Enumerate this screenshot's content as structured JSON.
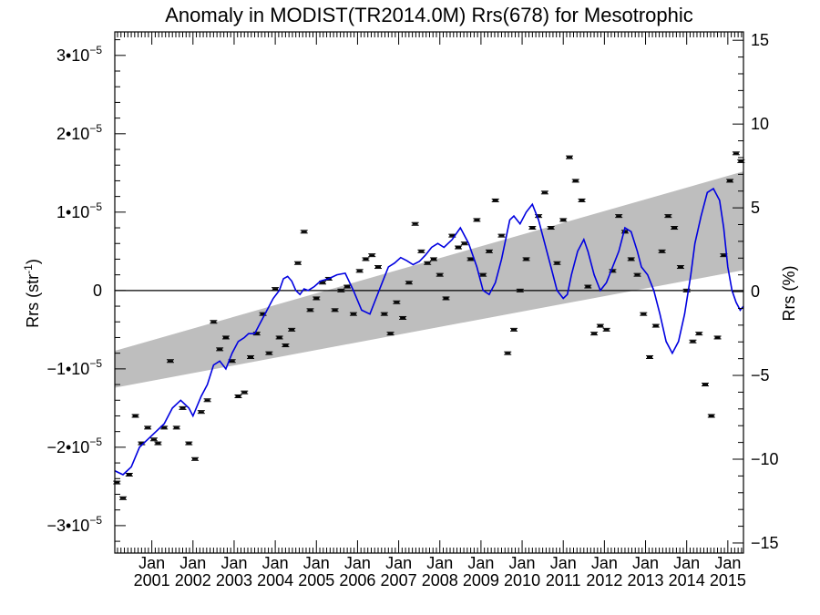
{
  "chart_data": {
    "type": "line",
    "title": "Anomaly in MODIST(TR2014.0M) Rrs(678) for Mesotrophic",
    "ylabel_left": "Rrs (str",
    "ylabel_left_sup": "-1",
    "ylabel_left_close": ")",
    "ylabel_right": "Rrs (%)",
    "xlim": [
      2000.1,
      2015.38
    ],
    "ylim": [
      -3.35e-05,
      3.3e-05
    ],
    "ylim_right": [
      -15.6,
      15.5
    ],
    "left_ticks": [
      {
        "value": 3e-05,
        "mant": "3•10",
        "exp": "−5"
      },
      {
        "value": 2e-05,
        "mant": "2•10",
        "exp": "−5"
      },
      {
        "value": 1e-05,
        "mant": "1•10",
        "exp": "−5"
      },
      {
        "value": 0,
        "mant": "0",
        "exp": ""
      },
      {
        "value": -1e-05,
        "mant": "−1•10",
        "exp": "−5"
      },
      {
        "value": -2e-05,
        "mant": "−2•10",
        "exp": "−5"
      },
      {
        "value": -3e-05,
        "mant": "−3•10",
        "exp": "−5"
      }
    ],
    "right_ticks": [
      {
        "value": 15,
        "label": "15"
      },
      {
        "value": 10,
        "label": "10"
      },
      {
        "value": 5,
        "label": "5"
      },
      {
        "value": 0,
        "label": "0"
      },
      {
        "value": -5,
        "label": "−5"
      },
      {
        "value": -10,
        "label": "−10"
      },
      {
        "value": -15,
        "label": "−15"
      }
    ],
    "x_ticks": [
      {
        "value": 2001,
        "month": "Jan",
        "year": "2001"
      },
      {
        "value": 2002,
        "month": "Jan",
        "year": "2002"
      },
      {
        "value": 2003,
        "month": "Jan",
        "year": "2003"
      },
      {
        "value": 2004,
        "month": "Jan",
        "year": "2004"
      },
      {
        "value": 2005,
        "month": "Jan",
        "year": "2005"
      },
      {
        "value": 2006,
        "month": "Jan",
        "year": "2006"
      },
      {
        "value": 2007,
        "month": "Jan",
        "year": "2007"
      },
      {
        "value": 2008,
        "month": "Jan",
        "year": "2008"
      },
      {
        "value": 2009,
        "month": "Jan",
        "year": "2009"
      },
      {
        "value": 2010,
        "month": "Jan",
        "year": "2010"
      },
      {
        "value": 2011,
        "month": "Jan",
        "year": "2011"
      },
      {
        "value": 2012,
        "month": "Jan",
        "year": "2012"
      },
      {
        "value": 2013,
        "month": "Jan",
        "year": "2013"
      },
      {
        "value": 2014,
        "month": "Jan",
        "year": "2014"
      },
      {
        "value": 2015,
        "month": "Jan",
        "year": "2015"
      }
    ],
    "band": {
      "color": "#bebebe",
      "x": [
        2000.1,
        2015.38
      ],
      "upper": [
        -7.7e-06,
        1.52e-05
      ],
      "lower": [
        -1.24e-05,
        2.6e-06
      ]
    },
    "zero_line": 0,
    "line": {
      "color": "#0000e0",
      "x": [
        2000.1,
        2000.3,
        2000.5,
        2000.7,
        2000.9,
        2001.1,
        2001.3,
        2001.5,
        2001.7,
        2001.9,
        2002.0,
        2002.2,
        2002.35,
        2002.5,
        2002.65,
        2002.8,
        2002.95,
        2003.1,
        2003.25,
        2003.35,
        2003.5,
        2003.65,
        2003.8,
        2003.95,
        2004.1,
        2004.2,
        2004.3,
        2004.4,
        2004.5,
        2004.6,
        2004.7,
        2004.8,
        2004.95,
        2005.1,
        2005.3,
        2005.5,
        2005.7,
        2005.9,
        2006.1,
        2006.3,
        2006.45,
        2006.6,
        2006.75,
        2006.9,
        2007.05,
        2007.2,
        2007.35,
        2007.5,
        2007.65,
        2007.8,
        2007.95,
        2008.1,
        2008.3,
        2008.5,
        2008.7,
        2008.9,
        2009.05,
        2009.2,
        2009.35,
        2009.5,
        2009.6,
        2009.7,
        2009.8,
        2009.95,
        2010.1,
        2010.25,
        2010.4,
        2010.55,
        2010.7,
        2010.85,
        2011.0,
        2011.1,
        2011.2,
        2011.35,
        2011.5,
        2011.6,
        2011.75,
        2011.9,
        2012.05,
        2012.2,
        2012.35,
        2012.5,
        2012.65,
        2012.8,
        2012.9,
        2013.05,
        2013.2,
        2013.35,
        2013.5,
        2013.65,
        2013.8,
        2013.95,
        2014.1,
        2014.2,
        2014.35,
        2014.5,
        2014.65,
        2014.8,
        2014.9,
        2015.0,
        2015.1,
        2015.2,
        2015.3,
        2015.38
      ],
      "y": [
        -2.3,
        -2.35,
        -2.25,
        -2.0,
        -1.9,
        -1.8,
        -1.7,
        -1.5,
        -1.4,
        -1.5,
        -1.6,
        -1.35,
        -1.2,
        -0.95,
        -0.9,
        -1.0,
        -0.8,
        -0.65,
        -0.6,
        -0.55,
        -0.55,
        -0.4,
        -0.25,
        -0.1,
        0.0,
        0.15,
        0.18,
        0.12,
        0.0,
        -0.05,
        0.02,
        0.0,
        0.05,
        0.12,
        0.15,
        0.2,
        0.22,
        0.0,
        -0.25,
        -0.3,
        -0.1,
        0.1,
        0.3,
        0.35,
        0.42,
        0.38,
        0.33,
        0.37,
        0.45,
        0.55,
        0.6,
        0.55,
        0.65,
        0.8,
        0.6,
        0.3,
        0.0,
        -0.05,
        0.1,
        0.4,
        0.65,
        0.9,
        0.95,
        0.85,
        1.0,
        1.1,
        0.9,
        0.6,
        0.3,
        0.0,
        -0.1,
        -0.05,
        0.2,
        0.5,
        0.65,
        0.5,
        0.2,
        0.0,
        0.1,
        0.3,
        0.5,
        0.8,
        0.75,
        0.5,
        0.3,
        0.2,
        0.0,
        -0.3,
        -0.65,
        -0.8,
        -0.65,
        -0.3,
        0.2,
        0.6,
        0.95,
        1.25,
        1.3,
        1.15,
        0.8,
        0.3,
        0.0,
        -0.15,
        -0.25,
        -0.2
      ],
      "y_scale": 1e-05
    },
    "points": {
      "y_scale": 1e-05,
      "x": [
        2000.15,
        2000.3,
        2000.45,
        2000.6,
        2000.75,
        2000.9,
        2001.05,
        2001.15,
        2001.3,
        2001.45,
        2001.6,
        2001.75,
        2001.9,
        2002.05,
        2002.2,
        2002.35,
        2002.5,
        2002.65,
        2002.8,
        2002.95,
        2003.1,
        2003.25,
        2003.4,
        2003.55,
        2003.7,
        2003.85,
        2004.0,
        2004.1,
        2004.25,
        2004.4,
        2004.55,
        2004.7,
        2004.85,
        2005.0,
        2005.15,
        2005.3,
        2005.45,
        2005.6,
        2005.75,
        2005.9,
        2006.05,
        2006.2,
        2006.35,
        2006.5,
        2006.65,
        2006.8,
        2006.95,
        2007.1,
        2007.25,
        2007.4,
        2007.55,
        2007.7,
        2007.85,
        2008.0,
        2008.15,
        2008.3,
        2008.45,
        2008.6,
        2008.75,
        2008.9,
        2009.05,
        2009.2,
        2009.35,
        2009.5,
        2009.65,
        2009.8,
        2009.95,
        2010.1,
        2010.25,
        2010.4,
        2010.55,
        2010.7,
        2010.85,
        2011.0,
        2011.15,
        2011.3,
        2011.45,
        2011.6,
        2011.75,
        2011.9,
        2012.05,
        2012.2,
        2012.35,
        2012.5,
        2012.65,
        2012.8,
        2012.95,
        2013.1,
        2013.25,
        2013.4,
        2013.55,
        2013.7,
        2013.85,
        2014.0,
        2014.15,
        2014.3,
        2014.45,
        2014.6,
        2014.75,
        2014.9,
        2015.05,
        2015.2,
        2015.32
      ],
      "y": [
        -2.45,
        -2.65,
        -2.35,
        -1.6,
        -1.95,
        -1.75,
        -1.9,
        -1.95,
        -1.75,
        -0.9,
        -1.75,
        -1.5,
        -1.95,
        -2.15,
        -1.55,
        -1.4,
        -0.4,
        -0.75,
        -0.6,
        -0.9,
        -1.35,
        -1.3,
        -0.85,
        -0.55,
        -0.3,
        -0.8,
        0.02,
        -0.6,
        -0.7,
        -0.5,
        0.35,
        0.75,
        -0.25,
        -0.1,
        0.1,
        0.15,
        -0.25,
        0.0,
        0.05,
        -0.3,
        0.25,
        0.4,
        0.45,
        0.3,
        -0.3,
        -0.55,
        -0.15,
        -0.35,
        0.1,
        0.85,
        0.5,
        0.35,
        0.4,
        0.2,
        -0.1,
        0.7,
        0.55,
        0.6,
        0.4,
        0.9,
        0.2,
        0.5,
        1.15,
        0.7,
        -0.8,
        -0.5,
        0.0,
        0.4,
        0.8,
        0.95,
        1.25,
        0.8,
        0.35,
        0.9,
        1.7,
        1.4,
        1.15,
        0.05,
        -0.55,
        -0.45,
        -0.5,
        0.25,
        0.95,
        0.75,
        0.4,
        0.2,
        -0.3,
        -0.85,
        -0.45,
        0.5,
        0.95,
        0.8,
        0.3,
        0.0,
        -0.65,
        -0.55,
        -1.2,
        -1.6,
        -0.6,
        0.45,
        1.4,
        1.75,
        1.65
      ]
    }
  }
}
